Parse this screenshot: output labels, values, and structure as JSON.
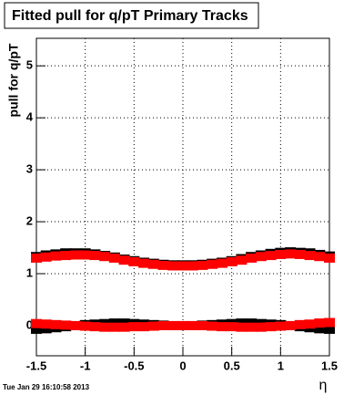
{
  "chart_data": {
    "type": "scatter",
    "title": "Fitted pull for q/pT  Primary Tracks",
    "y_label": "pull for q/pT",
    "x_label": "η",
    "timestamp": "Tue Jan 29 16:10:58 2013",
    "x": [
      -1.5,
      -1.4,
      -1.3,
      -1.2,
      -1.1,
      -1.0,
      -0.9,
      -0.8,
      -0.7,
      -0.6,
      -0.5,
      -0.4,
      -0.3,
      -0.2,
      -0.1,
      0.0,
      0.1,
      0.2,
      0.3,
      0.4,
      0.5,
      0.6,
      0.7,
      0.8,
      0.9,
      1.0,
      1.1,
      1.2,
      1.3,
      1.4,
      1.5
    ],
    "series": [
      {
        "color": "#000000",
        "values": [
          1.33,
          1.36,
          1.38,
          1.4,
          1.4,
          1.4,
          1.38,
          1.35,
          1.32,
          1.28,
          1.25,
          1.22,
          1.2,
          1.18,
          1.17,
          1.17,
          1.17,
          1.18,
          1.2,
          1.22,
          1.25,
          1.29,
          1.33,
          1.36,
          1.39,
          1.41,
          1.42,
          1.41,
          1.4,
          1.37,
          1.34
        ]
      },
      {
        "color": "#000000",
        "values": [
          -0.07,
          -0.06,
          -0.04,
          -0.02,
          0.0,
          0.02,
          0.03,
          0.04,
          0.05,
          0.05,
          0.04,
          0.03,
          0.02,
          0.01,
          0.0,
          0.0,
          0.0,
          0.01,
          0.02,
          0.03,
          0.04,
          0.05,
          0.05,
          0.04,
          0.03,
          0.02,
          0.0,
          -0.02,
          -0.04,
          -0.06,
          -0.07
        ]
      },
      {
        "color": "#ff0000",
        "values": [
          1.3,
          1.32,
          1.34,
          1.35,
          1.36,
          1.36,
          1.35,
          1.33,
          1.3,
          1.26,
          1.23,
          1.2,
          1.18,
          1.16,
          1.15,
          1.15,
          1.15,
          1.16,
          1.18,
          1.2,
          1.23,
          1.26,
          1.3,
          1.33,
          1.35,
          1.37,
          1.38,
          1.37,
          1.35,
          1.33,
          1.3
        ]
      },
      {
        "color": "#ff0000",
        "values": [
          0.04,
          0.03,
          0.02,
          0.01,
          0.0,
          -0.01,
          -0.02,
          -0.03,
          -0.03,
          -0.03,
          -0.02,
          -0.02,
          -0.01,
          0.0,
          0.0,
          0.0,
          0.0,
          0.0,
          -0.01,
          -0.02,
          -0.02,
          -0.03,
          -0.03,
          -0.03,
          -0.02,
          -0.01,
          0.0,
          0.02,
          0.03,
          0.05,
          0.06
        ]
      }
    ],
    "xlim": [
      -1.5,
      1.5
    ],
    "xticks": [
      -1.5,
      -1,
      -0.5,
      0,
      0.5,
      1,
      1.5
    ],
    "ylim": [
      -0.58,
      5.53
    ],
    "yticks": [
      0,
      1,
      2,
      3,
      4,
      5
    ],
    "grid": true
  }
}
